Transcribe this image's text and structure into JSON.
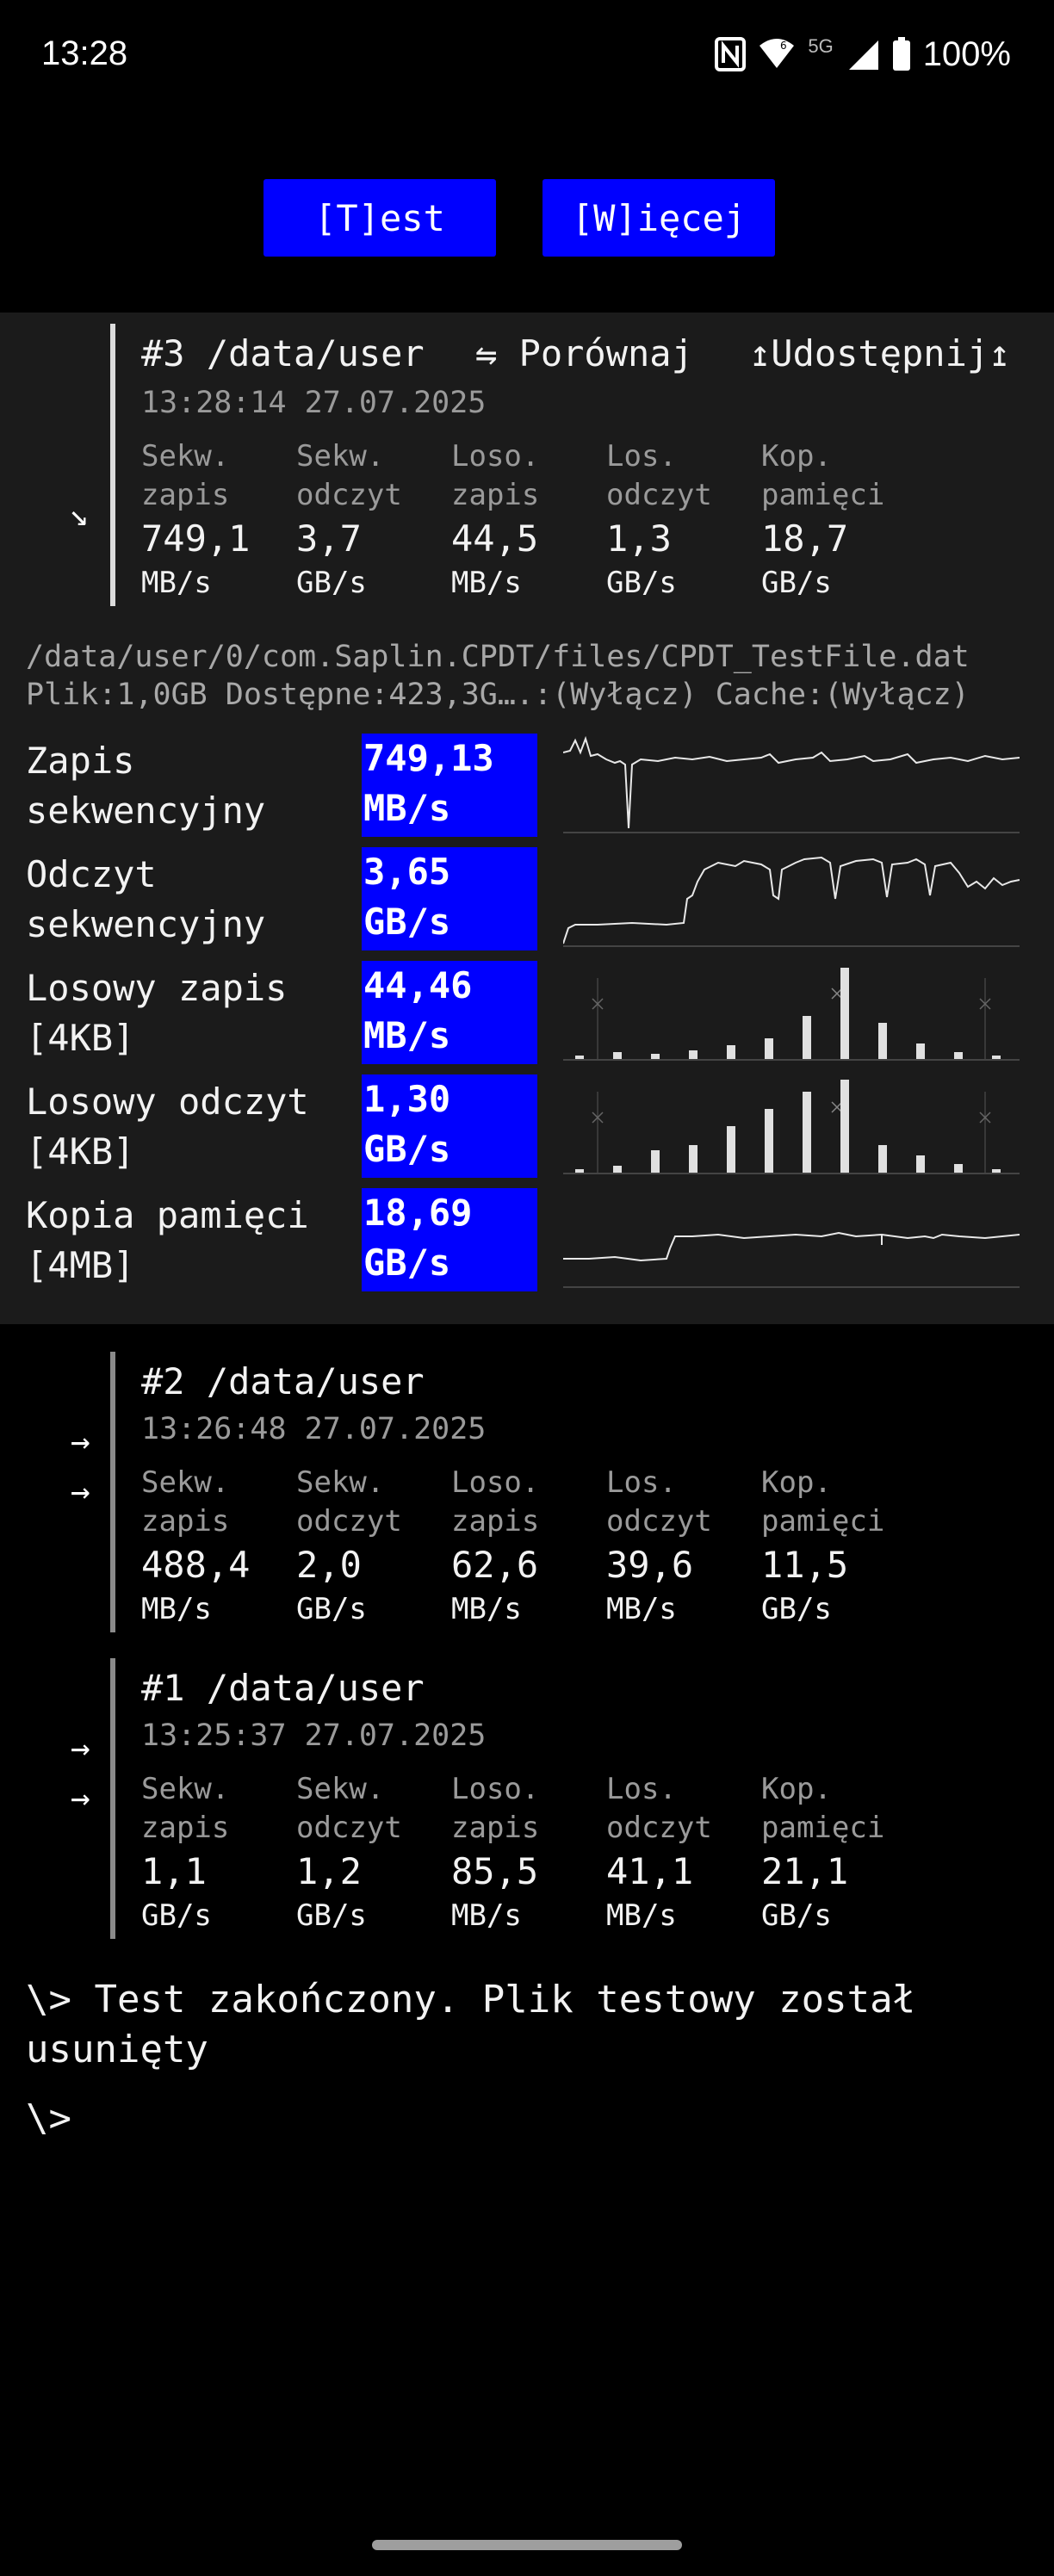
{
  "status": {
    "time": "13:28",
    "network": "5G",
    "battery": "100%"
  },
  "toolbar": {
    "test_label": "[T]est",
    "more_label": "[W]ięcej"
  },
  "current": {
    "title": "#3 /data/user",
    "compare_label": "⇋ Porównaj",
    "share_label": "↥Udostępnij↥",
    "timestamp": "13:28:14 27.07.2025",
    "arrow": "↘",
    "columns": [
      {
        "label1": "Sekw.",
        "label2": "zapis",
        "value": "749,1",
        "unit": "MB/s"
      },
      {
        "label1": "Sekw.",
        "label2": "odczyt",
        "value": "3,7",
        "unit": "GB/s"
      },
      {
        "label1": "Loso.",
        "label2": "zapis",
        "value": "44,5",
        "unit": "MB/s"
      },
      {
        "label1": "Los.",
        "label2": "odczyt",
        "value": "1,3",
        "unit": "GB/s"
      },
      {
        "label1": "Kop.",
        "label2": "pamięci",
        "value": "18,7",
        "unit": "GB/s"
      }
    ],
    "path": "/data/user/0/com.Saplin.CPDT/files/CPDT_TestFile.dat",
    "info": "Plik:1,0GB Dostępne:423,3G….:(Wyłącz) Cache:(Wyłącz)",
    "rows": [
      {
        "label1": "Zapis",
        "label2": "sekwencyjny",
        "value": "749,13",
        "unit": "MB/s"
      },
      {
        "label1": "Odczyt",
        "label2": "sekwencyjny",
        "value": "3,65",
        "unit": "GB/s"
      },
      {
        "label1": "Losowy zapis",
        "label2": "[4KB]",
        "value": "44,46",
        "unit": "MB/s"
      },
      {
        "label1": "Losowy odczyt",
        "label2": "[4KB]",
        "value": "1,30",
        "unit": "GB/s"
      },
      {
        "label1": "Kopia pamięci",
        "label2": "[4MB]",
        "value": "18,69",
        "unit": "GB/s"
      }
    ]
  },
  "history": [
    {
      "title": "#2 /data/user",
      "timestamp": "13:26:48 27.07.2025",
      "arrow1": "→",
      "arrow2": "→",
      "columns": [
        {
          "label1": "Sekw.",
          "label2": "zapis",
          "value": "488,4",
          "unit": "MB/s"
        },
        {
          "label1": "Sekw.",
          "label2": "odczyt",
          "value": "2,0",
          "unit": "GB/s"
        },
        {
          "label1": "Loso.",
          "label2": "zapis",
          "value": "62,6",
          "unit": "MB/s"
        },
        {
          "label1": "Los.",
          "label2": "odczyt",
          "value": "39,6",
          "unit": "MB/s"
        },
        {
          "label1": "Kop.",
          "label2": "pamięci",
          "value": "11,5",
          "unit": "GB/s"
        }
      ]
    },
    {
      "title": "#1 /data/user",
      "timestamp": "13:25:37 27.07.2025",
      "arrow1": "→",
      "arrow2": "→",
      "columns": [
        {
          "label1": "Sekw.",
          "label2": "zapis",
          "value": "1,1",
          "unit": "GB/s"
        },
        {
          "label1": "Sekw.",
          "label2": "odczyt",
          "value": "1,2",
          "unit": "GB/s"
        },
        {
          "label1": "Loso.",
          "label2": "zapis",
          "value": "85,5",
          "unit": "MB/s"
        },
        {
          "label1": "Los.",
          "label2": "odczyt",
          "value": "41,1",
          "unit": "MB/s"
        },
        {
          "label1": "Kop.",
          "label2": "pamięci",
          "value": "21,1",
          "unit": "GB/s"
        }
      ]
    }
  ],
  "terminal": {
    "message_line1": "\\> Test zakończony. Plik testowy został",
    "message_line2": "usunięty",
    "prompt": "\\>"
  }
}
